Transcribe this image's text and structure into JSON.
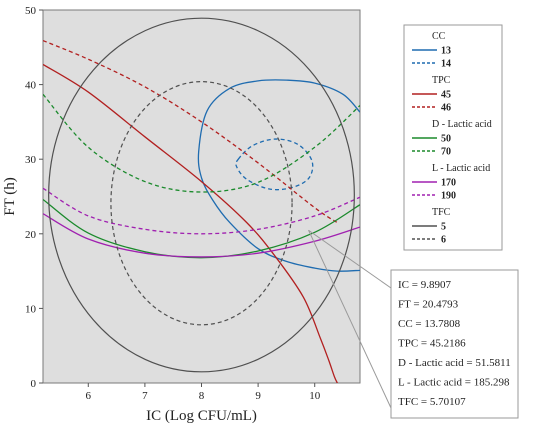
{
  "chart_data": {
    "type": "line",
    "title": "",
    "xlabel": "IC (Log CFU/mL)",
    "ylabel": "FT (h)",
    "xlim": [
      5.2,
      10.8
    ],
    "ylim": [
      0,
      50
    ],
    "xticks": [
      6,
      7,
      8,
      9,
      10
    ],
    "yticks": [
      0,
      10,
      20,
      30,
      40,
      50
    ],
    "plot_background": "#dedede",
    "legend_position": "right",
    "legend": [
      {
        "group": "CC",
        "entries": [
          {
            "label": "13",
            "color": "#1f6cb0",
            "dash": "solid"
          },
          {
            "label": "14",
            "color": "#1f6cb0",
            "dash": "dashed"
          }
        ]
      },
      {
        "group": "TPC",
        "entries": [
          {
            "label": "45",
            "color": "#b22020",
            "dash": "solid"
          },
          {
            "label": "46",
            "color": "#b22020",
            "dash": "dashed"
          }
        ]
      },
      {
        "group": "D - Lactic acid",
        "entries": [
          {
            "label": "50",
            "color": "#1b8a2c",
            "dash": "solid"
          },
          {
            "label": "70",
            "color": "#1b8a2c",
            "dash": "dashed"
          }
        ]
      },
      {
        "group": "L - Lactic acid",
        "entries": [
          {
            "label": "170",
            "color": "#a020b0",
            "dash": "solid"
          },
          {
            "label": "190",
            "color": "#a020b0",
            "dash": "dashed"
          }
        ]
      },
      {
        "group": "TFC",
        "entries": [
          {
            "label": "5",
            "color": "#505050",
            "dash": "solid"
          },
          {
            "label": "6",
            "color": "#505050",
            "dash": "dashed"
          }
        ]
      }
    ],
    "series": [
      {
        "group": "CC",
        "level": "13",
        "color": "#1f6cb0",
        "dash": "solid",
        "x": [
          10.8,
          10.5,
          10.0,
          9.5,
          9.0,
          8.5,
          8.1,
          7.95,
          8.0,
          8.2,
          8.5,
          9.0,
          9.5,
          10.0,
          10.4,
          10.8
        ],
        "y": [
          36.3,
          38.7,
          40.2,
          40.6,
          40.5,
          39.5,
          36.5,
          31.0,
          27.5,
          24.5,
          21.5,
          18.0,
          16.3,
          15.4,
          15.0,
          15.1
        ]
      },
      {
        "group": "CC",
        "level": "14",
        "color": "#1f6cb0",
        "dash": "dashed",
        "x": [
          8.65,
          8.9,
          9.3,
          9.7,
          9.95,
          9.9,
          9.6,
          9.2,
          8.8,
          8.62,
          8.65
        ],
        "y": [
          30.0,
          31.8,
          32.7,
          32.0,
          29.8,
          27.5,
          26.2,
          26.0,
          27.3,
          29.0,
          30.0
        ]
      },
      {
        "group": "TPC",
        "level": "45",
        "color": "#b22020",
        "dash": "solid",
        "x": [
          5.2,
          6.0,
          7.0,
          8.0,
          8.8,
          9.3,
          9.8,
          10.1,
          10.25,
          10.35,
          10.4
        ],
        "y": [
          42.7,
          39.0,
          33.0,
          27.0,
          21.5,
          17.0,
          11.5,
          6.0,
          3.0,
          0.8,
          0.0
        ]
      },
      {
        "group": "TPC",
        "level": "46",
        "color": "#b22020",
        "dash": "dashed",
        "x": [
          5.2,
          6.0,
          7.0,
          8.0,
          9.0,
          10.0,
          10.4
        ],
        "y": [
          45.9,
          43.4,
          39.7,
          35.0,
          29.5,
          23.5,
          21.5
        ]
      },
      {
        "group": "D - Lactic acid",
        "level": "50",
        "color": "#1b8a2c",
        "dash": "solid",
        "x": [
          5.2,
          6.0,
          7.0,
          8.0,
          9.0,
          10.0,
          10.8
        ],
        "y": [
          24.6,
          20.1,
          17.6,
          16.8,
          17.7,
          20.2,
          23.9
        ]
      },
      {
        "group": "D - Lactic acid",
        "level": "70",
        "color": "#1b8a2c",
        "dash": "dashed",
        "x": [
          5.2,
          6.0,
          7.0,
          8.0,
          9.0,
          10.0,
          10.8
        ],
        "y": [
          38.7,
          31.6,
          27.0,
          25.6,
          26.9,
          31.6,
          37.2
        ]
      },
      {
        "group": "L - Lactic acid",
        "level": "170",
        "color": "#a020b0",
        "dash": "solid",
        "x": [
          5.2,
          6.0,
          7.0,
          8.0,
          9.0,
          10.0,
          10.8
        ],
        "y": [
          22.7,
          19.3,
          17.4,
          16.9,
          17.4,
          19.0,
          20.9
        ]
      },
      {
        "group": "L - Lactic acid",
        "level": "190",
        "color": "#a020b0",
        "dash": "dashed",
        "x": [
          5.2,
          6.0,
          7.0,
          8.0,
          9.0,
          10.0,
          10.8
        ],
        "y": [
          26.1,
          22.4,
          20.6,
          20.0,
          20.6,
          22.4,
          24.9
        ]
      },
      {
        "group": "TFC",
        "level": "5",
        "color": "#505050",
        "dash": "solid",
        "ellipse": {
          "cx": 8.0,
          "cy": 25.2,
          "rx": 2.7,
          "ry": 23.7
        }
      },
      {
        "group": "TFC",
        "level": "6",
        "color": "#505050",
        "dash": "dashed",
        "ellipse": {
          "cx": 8.0,
          "cy": 24.1,
          "rx": 1.6,
          "ry": 16.3
        }
      }
    ],
    "crosshair": {
      "x": 9.8907,
      "y": 20.4793
    },
    "annotation_lines": [
      "IC = 9.8907",
      "FT = 20.4793",
      "CC = 13.7808",
      "TPC = 45.2186",
      "D - Lactic acid = 51.5811",
      "L - Lactic acid = 185.298",
      "TFC = 5.70107"
    ]
  }
}
